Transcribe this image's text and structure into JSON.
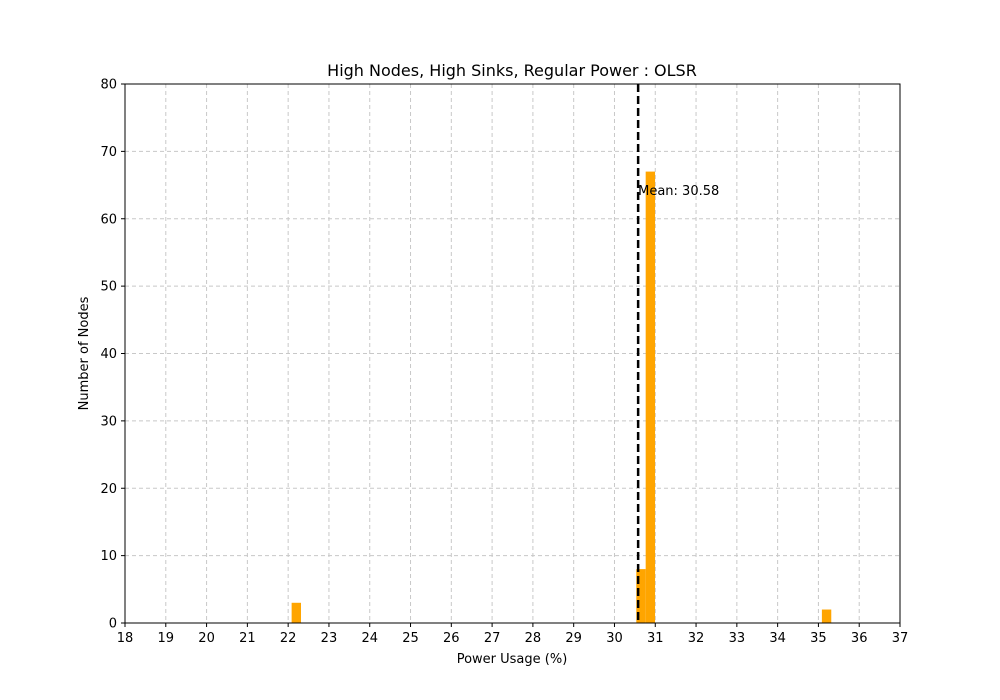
{
  "chart_data": {
    "type": "bar",
    "title": "High Nodes, High Sinks, Regular Power : OLSR",
    "xlabel": "Power Usage (%)",
    "ylabel": "Number of Nodes",
    "xlim": [
      18,
      37
    ],
    "ylim": [
      0,
      80
    ],
    "xticks": [
      18,
      19,
      20,
      21,
      22,
      23,
      24,
      25,
      26,
      27,
      28,
      29,
      30,
      31,
      32,
      33,
      34,
      35,
      36,
      37
    ],
    "yticks": [
      0,
      10,
      20,
      30,
      40,
      50,
      60,
      70,
      80
    ],
    "grid": true,
    "bin_width": 0.23,
    "bars": [
      {
        "x": 22.2,
        "value": 3
      },
      {
        "x": 30.65,
        "value": 8
      },
      {
        "x": 30.88,
        "value": 67
      },
      {
        "x": 35.2,
        "value": 2
      }
    ],
    "mean": 30.58,
    "mean_label": "Mean: 30.58",
    "colors": {
      "bar": "#ffa500",
      "mean_line": "#000000",
      "grid": "#c8c8c8"
    }
  }
}
